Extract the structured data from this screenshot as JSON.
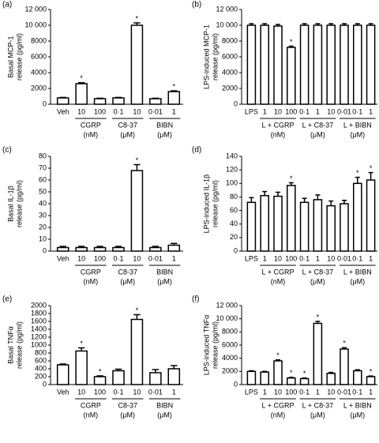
{
  "chart_data": [
    {
      "type": "bar",
      "title": "(a)",
      "ylabel": [
        "Basal MCP-1",
        "release (pg/ml)"
      ],
      "categories": [
        "Veh",
        "10",
        "100",
        "0·1",
        "10",
        "0·01",
        "1"
      ],
      "values": [
        800,
        2600,
        700,
        800,
        10000,
        700,
        1600
      ],
      "errors": [
        60,
        120,
        60,
        60,
        300,
        60,
        100
      ],
      "annotations": [
        null,
        "*",
        null,
        null,
        "*",
        null,
        "*"
      ],
      "groups": [
        {
          "label": "CGRP",
          "unit": "(nM)",
          "count": 2
        },
        {
          "label": "C8-37",
          "unit": "(μM)",
          "count": 2
        },
        {
          "label": "BIBN",
          "unit": "(μM)",
          "count": 2
        }
      ],
      "color": "#ffffff",
      "edgecolor": "#000000",
      "ylim": [
        0,
        12000
      ],
      "yticks": [
        0,
        2000,
        4000,
        6000,
        8000,
        {
          "value": 10000,
          "label": "10 000"
        },
        {
          "value": 12000,
          "label": "12 000"
        }
      ]
    },
    {
      "type": "bar",
      "title": "(b)",
      "ylabel": [
        "LPS-induced MCP-1",
        "release (pg/ml)"
      ],
      "categories": [
        "LPS",
        "1",
        "10",
        "100",
        "0·1",
        "1",
        "10",
        "0·01",
        "0·1",
        "1"
      ],
      "values": [
        10000,
        10000,
        9900,
        7200,
        10000,
        10000,
        10000,
        10000,
        10000,
        10000
      ],
      "errors": [
        200,
        200,
        200,
        150,
        200,
        200,
        200,
        200,
        200,
        200
      ],
      "annotations": [
        null,
        null,
        null,
        "*",
        null,
        null,
        null,
        null,
        null,
        null
      ],
      "groups": [
        {
          "label": "L + CGRP",
          "unit": "(nM)",
          "count": 3
        },
        {
          "label": "L + C8-37",
          "unit": "(μM)",
          "count": 3
        },
        {
          "label": "L + BIBN",
          "unit": "(μM)",
          "count": 3
        }
      ],
      "color": "#ffffff",
      "edgecolor": "#000000",
      "ylim": [
        0,
        12000
      ],
      "yticks": [
        0,
        2000,
        4000,
        6000,
        8000,
        {
          "value": 10000,
          "label": "10 000"
        },
        {
          "value": 12000,
          "label": "12 000"
        }
      ]
    },
    {
      "type": "bar",
      "title": "(c)",
      "ylabel": [
        "Basal IL-1β",
        "release (pg/ml)"
      ],
      "categories": [
        "Veh",
        "10",
        "100",
        "0·1",
        "10",
        "0·01",
        "1"
      ],
      "values": [
        3,
        3,
        3,
        3,
        68,
        3,
        5
      ],
      "errors": [
        1,
        1,
        1,
        1,
        5,
        1,
        1.5
      ],
      "annotations": [
        null,
        null,
        null,
        null,
        "*",
        null,
        null
      ],
      "groups": [
        {
          "label": "CGRP",
          "unit": "(nM)",
          "count": 2
        },
        {
          "label": "C8-37",
          "unit": "(μM)",
          "count": 2
        },
        {
          "label": "BIBN",
          "unit": "(μM)",
          "count": 2
        }
      ],
      "color": "#ffffff",
      "edgecolor": "#000000",
      "ylim": [
        0,
        80
      ],
      "yticks": [
        0,
        10,
        20,
        30,
        40,
        50,
        60,
        70,
        80
      ]
    },
    {
      "type": "bar",
      "title": "(d)",
      "ylabel": [
        "LPS-induced IL-1β",
        "release (pg/ml)"
      ],
      "categories": [
        "LPS",
        "1",
        "10",
        "100",
        "0·1",
        "1",
        "10",
        "0·01",
        "0·1",
        "1"
      ],
      "values": [
        72,
        82,
        81,
        97,
        72,
        76,
        67,
        70,
        100,
        105
      ],
      "errors": [
        7,
        6,
        6,
        4,
        6,
        7,
        7,
        5,
        9,
        11
      ],
      "annotations": [
        null,
        null,
        null,
        "*",
        null,
        null,
        null,
        null,
        "*",
        "*"
      ],
      "groups": [
        {
          "label": "L + CGRP",
          "unit": "(nM)",
          "count": 3
        },
        {
          "label": "L + C8-37",
          "unit": "(μM)",
          "count": 3
        },
        {
          "label": "L + BIBN",
          "unit": "(μM)",
          "count": 3
        }
      ],
      "color": "#ffffff",
      "edgecolor": "#000000",
      "ylim": [
        0,
        140
      ],
      "yticks": [
        0,
        20,
        40,
        60,
        80,
        100,
        120,
        140
      ]
    },
    {
      "type": "bar",
      "title": "(e)",
      "ylabel": [
        "Basal TNFα",
        "release (pg/ml)"
      ],
      "categories": [
        "Veh",
        "10",
        "100",
        "0·1",
        "10",
        "0·01",
        "1"
      ],
      "values": [
        500,
        850,
        200,
        350,
        1650,
        300,
        400
      ],
      "errors": [
        20,
        80,
        20,
        40,
        120,
        80,
        80
      ],
      "annotations": [
        null,
        "*",
        "*",
        null,
        "*",
        null,
        null
      ],
      "groups": [
        {
          "label": "CGRP",
          "unit": "(nM)",
          "count": 2
        },
        {
          "label": "C8-37",
          "unit": "(μM)",
          "count": 2
        },
        {
          "label": "BIBN",
          "unit": "(μM)",
          "count": 2
        }
      ],
      "color": "#ffffff",
      "edgecolor": "#000000",
      "ylim": [
        0,
        2000
      ],
      "yticks": [
        0,
        200,
        400,
        600,
        800,
        1000,
        1200,
        1400,
        1600,
        1800,
        2000
      ]
    },
    {
      "type": "bar",
      "title": "(f)",
      "ylabel": [
        "LPS-induced TNFα",
        "release (pg/ml)"
      ],
      "categories": [
        "LPS",
        "1",
        "10",
        "100",
        "0·1",
        "1",
        "10",
        "0·01",
        "0·1",
        "1"
      ],
      "values": [
        2000,
        1900,
        3600,
        1000,
        900,
        9300,
        1700,
        5400,
        2100,
        1200
      ],
      "errors": [
        100,
        100,
        150,
        100,
        100,
        300,
        150,
        200,
        150,
        100
      ],
      "annotations": [
        null,
        null,
        "*",
        "*",
        "*",
        "*",
        null,
        "*",
        null,
        "*"
      ],
      "groups": [
        {
          "label": "L + CGRP",
          "unit": "(nM)",
          "count": 3
        },
        {
          "label": "L + C8-37",
          "unit": "(μM)",
          "count": 3
        },
        {
          "label": "L + BIBN",
          "unit": "(μM)",
          "count": 3
        }
      ],
      "color": "#ffffff",
      "edgecolor": "#000000",
      "ylim": [
        0,
        12000
      ],
      "yticks": [
        0,
        2000,
        4000,
        6000,
        8000,
        {
          "value": 10000,
          "label": "10 000"
        },
        {
          "value": 12000,
          "label": "12 000"
        }
      ]
    }
  ]
}
